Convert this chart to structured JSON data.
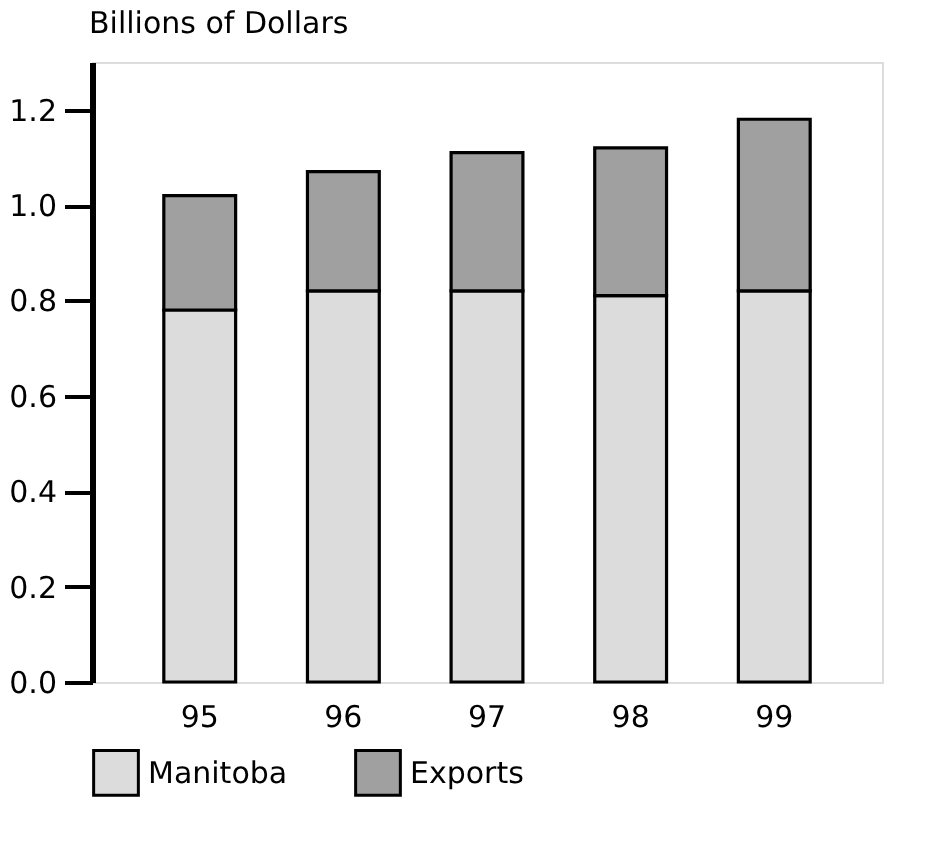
{
  "chart_data": {
    "type": "bar",
    "stacked": true,
    "ylabel": "Billions of Dollars",
    "categories": [
      "95",
      "96",
      "97",
      "98",
      "99"
    ],
    "series": [
      {
        "name": "Manitoba",
        "color": "#dcdcdc",
        "values": [
          0.78,
          0.82,
          0.82,
          0.81,
          0.82
        ]
      },
      {
        "name": "Exports",
        "color": "#a0a0a0",
        "values": [
          0.24,
          0.25,
          0.29,
          0.31,
          0.36
        ]
      }
    ],
    "ylim": [
      0,
      1.3
    ],
    "yticks": [
      {
        "value": 0.0,
        "label": "0.0"
      },
      0.2,
      0.4,
      0.6,
      0.8,
      {
        "value": 1.0,
        "label": "1.0"
      },
      1.2
    ],
    "grid": false,
    "legend": "bottom"
  }
}
